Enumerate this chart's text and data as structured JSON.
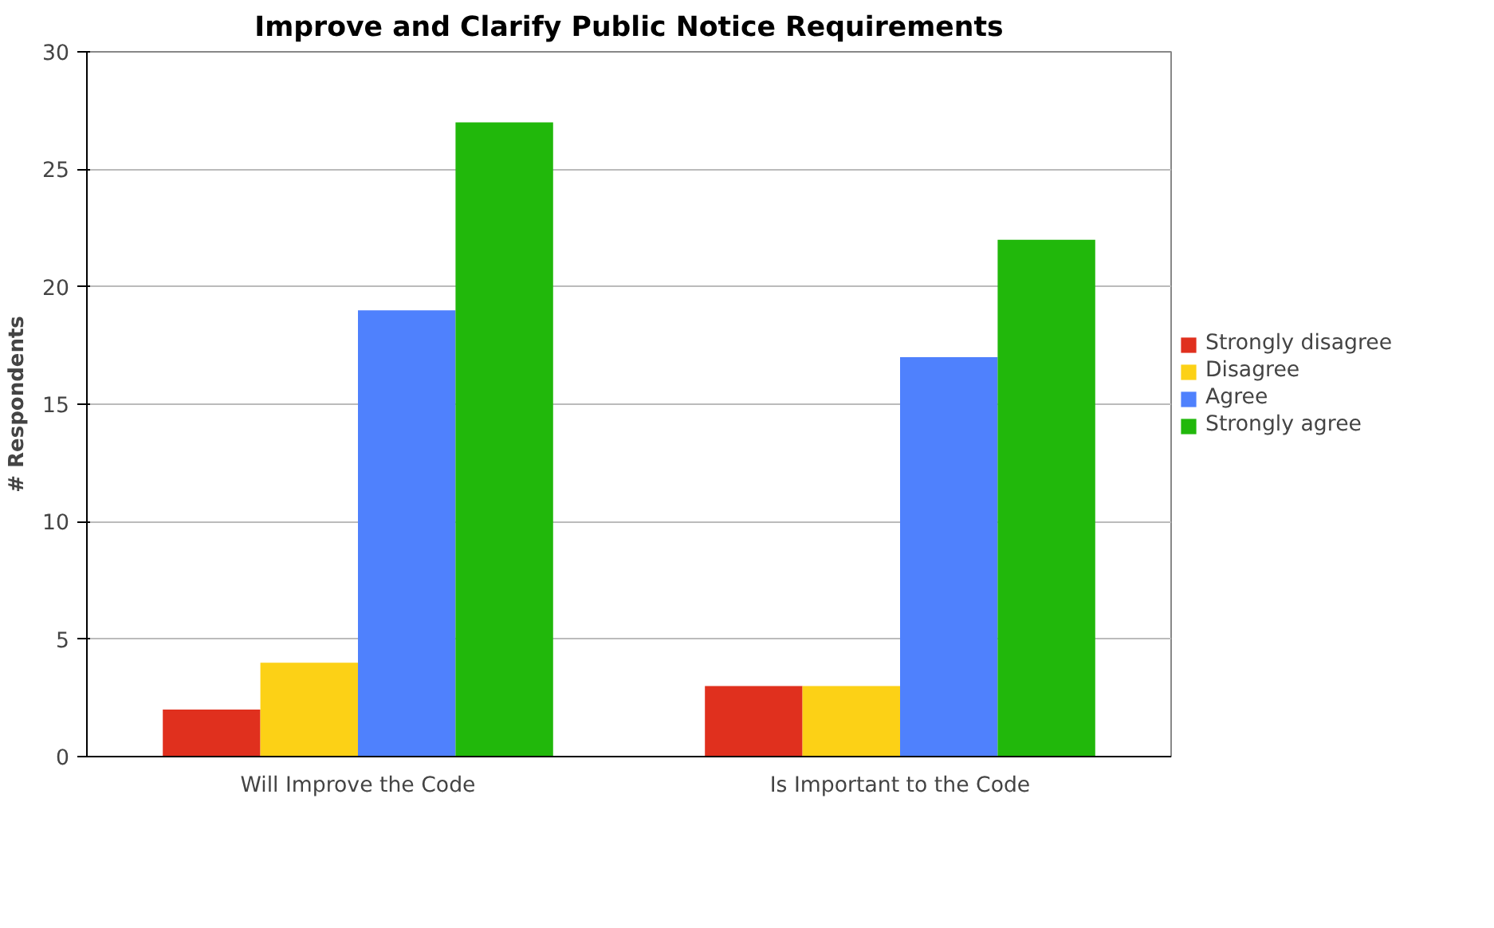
{
  "chart_data": {
    "type": "bar",
    "title": "Improve and Clarify Public Notice Requirements",
    "ylabel": "# Respondents",
    "categories": [
      "Will Improve the Code",
      "Is Important to the Code"
    ],
    "series": [
      {
        "name": "Strongly disagree",
        "color": "#e0301e",
        "values": [
          2,
          3
        ]
      },
      {
        "name": "Disagree",
        "color": "#fcd116",
        "values": [
          4,
          3
        ]
      },
      {
        "name": "Agree",
        "color": "#4f81fd",
        "values": [
          19,
          17
        ]
      },
      {
        "name": "Strongly agree",
        "color": "#21b80b",
        "values": [
          27,
          22
        ]
      }
    ],
    "ylim": [
      0,
      30
    ],
    "yticks": [
      0,
      5,
      10,
      15,
      20,
      25,
      30
    ],
    "grid": "y",
    "legend": "right"
  }
}
